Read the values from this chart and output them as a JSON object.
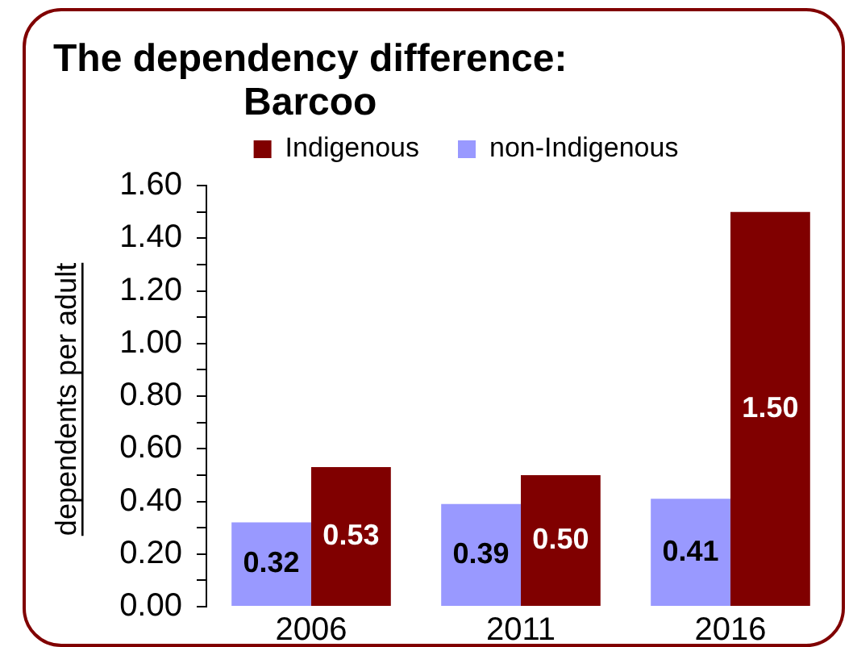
{
  "chart_data": {
    "type": "bar",
    "title": "The dependency difference:\nBarcoo",
    "ylabel": "dependents per adult",
    "categories": [
      "2006",
      "2011",
      "2016"
    ],
    "series": [
      {
        "name": "non-Indigenous",
        "color": "#9999ff",
        "values": [
          0.32,
          0.39,
          0.41
        ],
        "value_labels": [
          "0.32",
          "0.39",
          "0.41"
        ]
      },
      {
        "name": "Indigenous",
        "color": "#800000",
        "values": [
          0.53,
          0.5,
          1.5
        ],
        "value_labels": [
          "0.53",
          "0.50",
          "1.50"
        ]
      }
    ],
    "ylim": [
      0,
      1.6
    ],
    "yticks": [
      {
        "value": 0,
        "label": "0.00"
      },
      {
        "value": 0.1,
        "label": null
      },
      {
        "value": 0.2,
        "label": "0.20"
      },
      {
        "value": 0.3,
        "label": null
      },
      {
        "value": 0.4,
        "label": "0.40"
      },
      {
        "value": 0.5,
        "label": null
      },
      {
        "value": 0.6,
        "label": "0.60"
      },
      {
        "value": 0.7,
        "label": null
      },
      {
        "value": 0.8,
        "label": "0.80"
      },
      {
        "value": 0.9,
        "label": null
      },
      {
        "value": 1,
        "label": "1.00"
      },
      {
        "value": 1.1,
        "label": null
      },
      {
        "value": 1.2,
        "label": "1.20"
      },
      {
        "value": 1.3,
        "label": null
      },
      {
        "value": 1.4,
        "label": "1.40"
      },
      {
        "value": 1.5,
        "label": null
      },
      {
        "value": 1.6,
        "label": "1.60"
      }
    ],
    "grid": false,
    "legend": "top"
  }
}
